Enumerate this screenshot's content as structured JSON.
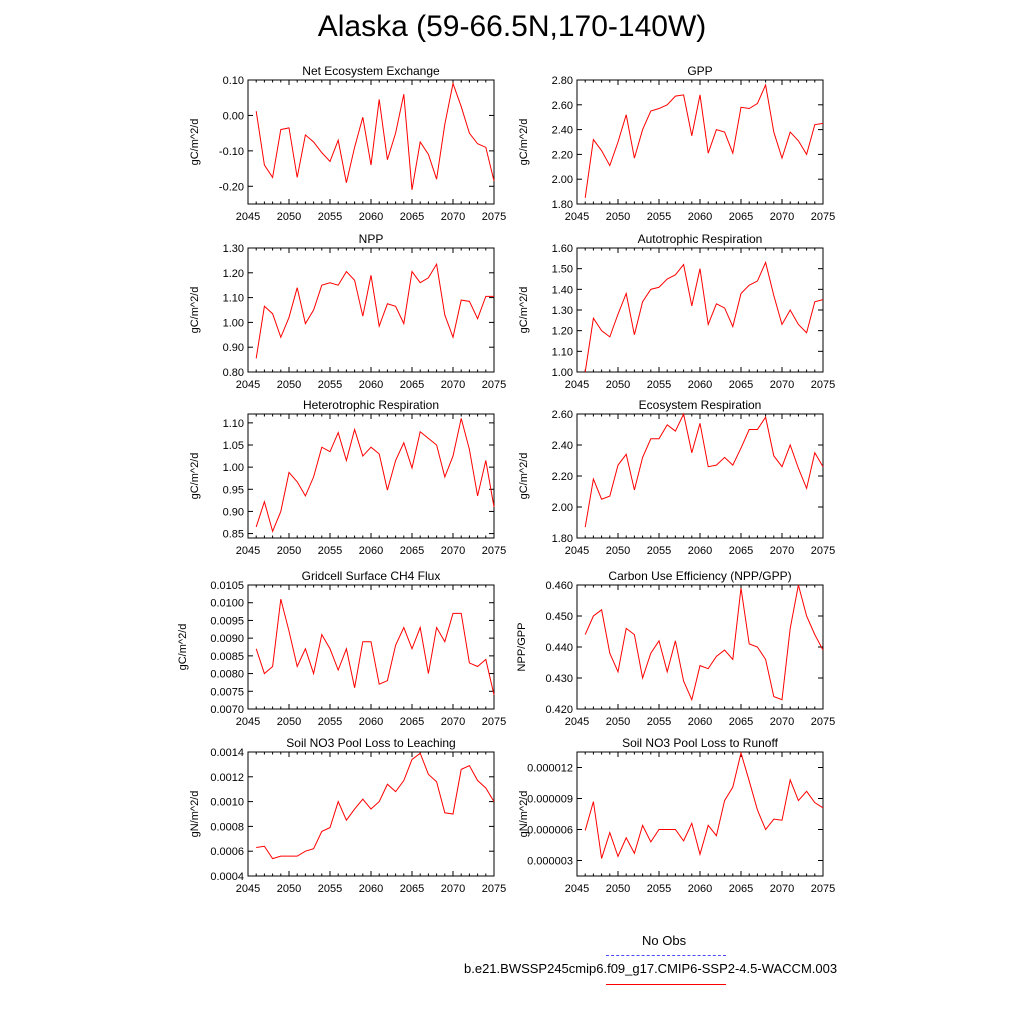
{
  "title": "Alaska (59-66.5N,170-140W)",
  "legend": {
    "obs_label": "No Obs",
    "model_label": "b.e21.BWSSP245cmip6.f09_g17.CMIP6-SSP2-4.5-WACCM.003",
    "obs_color": "#4a4aff",
    "model_color": "#ff0000"
  },
  "chart_data": [
    {
      "type": "line",
      "title": "Net Ecosystem Exchange",
      "ylabel": "gC/m^2/d",
      "xlim": [
        2045,
        2075
      ],
      "xticks": [
        2045,
        2050,
        2055,
        2060,
        2065,
        2070,
        2075
      ],
      "ylim": [
        -0.25,
        0.1
      ],
      "yticks": [
        -0.2,
        -0.1,
        0.0,
        0.1
      ],
      "ytick_labels": [
        "-0.20",
        "-0.10",
        "0.00",
        "0.10"
      ],
      "x": [
        2046,
        2047,
        2048,
        2049,
        2050,
        2051,
        2052,
        2053,
        2054,
        2055,
        2056,
        2057,
        2058,
        2059,
        2060,
        2061,
        2062,
        2063,
        2064,
        2065,
        2066,
        2067,
        2068,
        2069,
        2070,
        2071,
        2072,
        2073,
        2074,
        2075
      ],
      "series": [
        {
          "values": [
            0.012,
            -0.14,
            -0.175,
            -0.04,
            -0.035,
            -0.175,
            -0.055,
            -0.075,
            -0.105,
            -0.13,
            -0.07,
            -0.19,
            -0.09,
            -0.005,
            -0.14,
            0.045,
            -0.125,
            -0.05,
            0.06,
            -0.21,
            -0.075,
            -0.11,
            -0.18,
            -0.025,
            0.09,
            0.025,
            -0.05,
            -0.08,
            -0.09,
            -0.185
          ],
          "color": "#ff0000"
        }
      ]
    },
    {
      "type": "line",
      "title": "GPP",
      "ylabel": "gC/m^2/d",
      "xlim": [
        2045,
        2075
      ],
      "xticks": [
        2045,
        2050,
        2055,
        2060,
        2065,
        2070,
        2075
      ],
      "ylim": [
        1.8,
        2.8
      ],
      "yticks": [
        1.8,
        2.0,
        2.2,
        2.4,
        2.6,
        2.8
      ],
      "ytick_labels": [
        "1.80",
        "2.00",
        "2.20",
        "2.40",
        "2.60",
        "2.80"
      ],
      "x": [
        2046,
        2047,
        2048,
        2049,
        2050,
        2051,
        2052,
        2053,
        2054,
        2055,
        2056,
        2057,
        2058,
        2059,
        2060,
        2061,
        2062,
        2063,
        2064,
        2065,
        2066,
        2067,
        2068,
        2069,
        2070,
        2071,
        2072,
        2073,
        2074,
        2075
      ],
      "series": [
        {
          "values": [
            1.85,
            2.32,
            2.23,
            2.11,
            2.3,
            2.52,
            2.17,
            2.4,
            2.55,
            2.57,
            2.6,
            2.67,
            2.68,
            2.35,
            2.68,
            2.21,
            2.4,
            2.38,
            2.21,
            2.58,
            2.57,
            2.61,
            2.76,
            2.38,
            2.17,
            2.38,
            2.31,
            2.2,
            2.44,
            2.45
          ],
          "color": "#ff0000"
        }
      ]
    },
    {
      "type": "line",
      "title": "NPP",
      "ylabel": "gC/m^2/d",
      "xlim": [
        2045,
        2075
      ],
      "xticks": [
        2045,
        2050,
        2055,
        2060,
        2065,
        2070,
        2075
      ],
      "ylim": [
        0.8,
        1.3
      ],
      "yticks": [
        0.8,
        0.9,
        1.0,
        1.1,
        1.2,
        1.3
      ],
      "ytick_labels": [
        "0.80",
        "0.90",
        "1.00",
        "1.10",
        "1.20",
        "1.30"
      ],
      "x": [
        2046,
        2047,
        2048,
        2049,
        2050,
        2051,
        2052,
        2053,
        2054,
        2055,
        2056,
        2057,
        2058,
        2059,
        2060,
        2061,
        2062,
        2063,
        2064,
        2065,
        2066,
        2067,
        2068,
        2069,
        2070,
        2071,
        2072,
        2073,
        2074,
        2075
      ],
      "series": [
        {
          "values": [
            0.855,
            1.065,
            1.035,
            0.94,
            1.02,
            1.14,
            0.995,
            1.05,
            1.15,
            1.16,
            1.15,
            1.205,
            1.17,
            1.025,
            1.19,
            0.985,
            1.075,
            1.065,
            0.995,
            1.205,
            1.16,
            1.18,
            1.235,
            1.03,
            0.94,
            1.09,
            1.085,
            1.015,
            1.105,
            1.105
          ],
          "color": "#ff0000"
        }
      ]
    },
    {
      "type": "line",
      "title": "Autotrophic Respiration",
      "ylabel": "gC/m^2/d",
      "xlim": [
        2045,
        2075
      ],
      "xticks": [
        2045,
        2050,
        2055,
        2060,
        2065,
        2070,
        2075
      ],
      "ylim": [
        1.0,
        1.6
      ],
      "yticks": [
        1.0,
        1.1,
        1.2,
        1.3,
        1.4,
        1.5,
        1.6
      ],
      "ytick_labels": [
        "1.00",
        "1.10",
        "1.20",
        "1.30",
        "1.40",
        "1.50",
        "1.60"
      ],
      "x": [
        2046,
        2047,
        2048,
        2049,
        2050,
        2051,
        2052,
        2053,
        2054,
        2055,
        2056,
        2057,
        2058,
        2059,
        2060,
        2061,
        2062,
        2063,
        2064,
        2065,
        2066,
        2067,
        2068,
        2069,
        2070,
        2071,
        2072,
        2073,
        2074,
        2075
      ],
      "series": [
        {
          "values": [
            1.0,
            1.26,
            1.2,
            1.17,
            1.28,
            1.38,
            1.18,
            1.34,
            1.4,
            1.41,
            1.45,
            1.47,
            1.52,
            1.32,
            1.5,
            1.23,
            1.33,
            1.31,
            1.22,
            1.38,
            1.42,
            1.44,
            1.53,
            1.37,
            1.23,
            1.3,
            1.23,
            1.19,
            1.34,
            1.35
          ],
          "color": "#ff0000"
        }
      ]
    },
    {
      "type": "line",
      "title": "Heterotrophic Respiration",
      "ylabel": "gC/m^2/d",
      "xlim": [
        2045,
        2075
      ],
      "xticks": [
        2045,
        2050,
        2055,
        2060,
        2065,
        2070,
        2075
      ],
      "ylim": [
        0.84,
        1.12
      ],
      "yticks": [
        0.85,
        0.9,
        0.95,
        1.0,
        1.05,
        1.1
      ],
      "ytick_labels": [
        "0.85",
        "0.90",
        "0.95",
        "1.00",
        "1.05",
        "1.10"
      ],
      "x": [
        2046,
        2047,
        2048,
        2049,
        2050,
        2051,
        2052,
        2053,
        2054,
        2055,
        2056,
        2057,
        2058,
        2059,
        2060,
        2061,
        2062,
        2063,
        2064,
        2065,
        2066,
        2067,
        2068,
        2069,
        2070,
        2071,
        2072,
        2073,
        2074,
        2075
      ],
      "series": [
        {
          "values": [
            0.865,
            0.922,
            0.855,
            0.9,
            0.988,
            0.967,
            0.935,
            0.978,
            1.045,
            1.035,
            1.078,
            1.015,
            1.085,
            1.025,
            1.045,
            1.03,
            0.948,
            1.015,
            1.055,
            0.998,
            1.08,
            1.065,
            1.05,
            0.978,
            1.025,
            1.11,
            1.04,
            0.935,
            1.015,
            0.91
          ],
          "color": "#ff0000"
        }
      ]
    },
    {
      "type": "line",
      "title": "Ecosystem Respiration",
      "ylabel": "gC/m^2/d",
      "xlim": [
        2045,
        2075
      ],
      "xticks": [
        2045,
        2050,
        2055,
        2060,
        2065,
        2070,
        2075
      ],
      "ylim": [
        1.8,
        2.6
      ],
      "yticks": [
        1.8,
        2.0,
        2.2,
        2.4,
        2.6
      ],
      "ytick_labels": [
        "1.80",
        "2.00",
        "2.20",
        "2.40",
        "2.60"
      ],
      "x": [
        2046,
        2047,
        2048,
        2049,
        2050,
        2051,
        2052,
        2053,
        2054,
        2055,
        2056,
        2057,
        2058,
        2059,
        2060,
        2061,
        2062,
        2063,
        2064,
        2065,
        2066,
        2067,
        2068,
        2069,
        2070,
        2071,
        2072,
        2073,
        2074,
        2075
      ],
      "series": [
        {
          "values": [
            1.87,
            2.18,
            2.05,
            2.07,
            2.27,
            2.34,
            2.11,
            2.32,
            2.44,
            2.44,
            2.53,
            2.49,
            2.6,
            2.35,
            2.54,
            2.26,
            2.27,
            2.32,
            2.27,
            2.38,
            2.5,
            2.5,
            2.58,
            2.33,
            2.26,
            2.4,
            2.25,
            2.12,
            2.35,
            2.26
          ],
          "color": "#ff0000"
        }
      ]
    },
    {
      "type": "line",
      "title": "Gridcell Surface CH4 Flux",
      "ylabel": "gC/m^2/d",
      "xlim": [
        2045,
        2075
      ],
      "xticks": [
        2045,
        2050,
        2055,
        2060,
        2065,
        2070,
        2075
      ],
      "ylim": [
        0.007,
        0.0105
      ],
      "yticks": [
        0.007,
        0.0075,
        0.008,
        0.0085,
        0.009,
        0.0095,
        0.01,
        0.0105
      ],
      "ytick_labels": [
        "0.0070",
        "0.0075",
        "0.0080",
        "0.0085",
        "0.0090",
        "0.0095",
        "0.0100",
        "0.0105"
      ],
      "x": [
        2046,
        2047,
        2048,
        2049,
        2050,
        2051,
        2052,
        2053,
        2054,
        2055,
        2056,
        2057,
        2058,
        2059,
        2060,
        2061,
        2062,
        2063,
        2064,
        2065,
        2066,
        2067,
        2068,
        2069,
        2070,
        2071,
        2072,
        2073,
        2074,
        2075
      ],
      "series": [
        {
          "values": [
            0.0087,
            0.008,
            0.0082,
            0.0101,
            0.0092,
            0.0082,
            0.0087,
            0.008,
            0.0091,
            0.0087,
            0.0081,
            0.0087,
            0.0076,
            0.0089,
            0.0089,
            0.0077,
            0.0078,
            0.0088,
            0.0093,
            0.0087,
            0.0093,
            0.008,
            0.0093,
            0.0089,
            0.0097,
            0.0097,
            0.0083,
            0.0082,
            0.0084,
            0.0074
          ],
          "color": "#ff0000"
        }
      ]
    },
    {
      "type": "line",
      "title": "Carbon Use Efficiency (NPP/GPP)",
      "ylabel": "NPP/GPP",
      "xlim": [
        2045,
        2075
      ],
      "xticks": [
        2045,
        2050,
        2055,
        2060,
        2065,
        2070,
        2075
      ],
      "ylim": [
        0.42,
        0.46
      ],
      "yticks": [
        0.42,
        0.43,
        0.44,
        0.45,
        0.46
      ],
      "ytick_labels": [
        "0.420",
        "0.430",
        "0.440",
        "0.450",
        "0.460"
      ],
      "x": [
        2046,
        2047,
        2048,
        2049,
        2050,
        2051,
        2052,
        2053,
        2054,
        2055,
        2056,
        2057,
        2058,
        2059,
        2060,
        2061,
        2062,
        2063,
        2064,
        2065,
        2066,
        2067,
        2068,
        2069,
        2070,
        2071,
        2072,
        2073,
        2074,
        2075
      ],
      "series": [
        {
          "values": [
            0.444,
            0.45,
            0.452,
            0.438,
            0.432,
            0.446,
            0.444,
            0.43,
            0.438,
            0.442,
            0.432,
            0.442,
            0.429,
            0.423,
            0.434,
            0.433,
            0.437,
            0.439,
            0.436,
            0.459,
            0.441,
            0.44,
            0.436,
            0.424,
            0.423,
            0.446,
            0.46,
            0.45,
            0.444,
            0.439
          ],
          "color": "#ff0000"
        }
      ]
    },
    {
      "type": "line",
      "title": "Soil NO3 Pool Loss to Leaching",
      "ylabel": "gN/m^2/d",
      "xlim": [
        2045,
        2075
      ],
      "xticks": [
        2045,
        2050,
        2055,
        2060,
        2065,
        2070,
        2075
      ],
      "ylim": [
        0.0004,
        0.0014
      ],
      "yticks": [
        0.0004,
        0.0006,
        0.0008,
        0.001,
        0.0012,
        0.0014
      ],
      "ytick_labels": [
        "0.0004",
        "0.0006",
        "0.0008",
        "0.0010",
        "0.0012",
        "0.0014"
      ],
      "x": [
        2046,
        2047,
        2048,
        2049,
        2050,
        2051,
        2052,
        2053,
        2054,
        2055,
        2056,
        2057,
        2058,
        2059,
        2060,
        2061,
        2062,
        2063,
        2064,
        2065,
        2066,
        2067,
        2068,
        2069,
        2070,
        2071,
        2072,
        2073,
        2074,
        2075
      ],
      "series": [
        {
          "values": [
            0.00063,
            0.00064,
            0.00054,
            0.00056,
            0.00056,
            0.00056,
            0.0006,
            0.00062,
            0.00076,
            0.00079,
            0.001,
            0.00085,
            0.00094,
            0.00102,
            0.00094,
            0.001,
            0.00114,
            0.00108,
            0.00117,
            0.00134,
            0.00139,
            0.00122,
            0.00116,
            0.00091,
            0.0009,
            0.00126,
            0.00129,
            0.00117,
            0.00111,
            0.001
          ],
          "color": "#ff0000"
        }
      ]
    },
    {
      "type": "line",
      "title": "Soil NO3 Pool Loss to Runoff",
      "ylabel": "gN/m^2/d",
      "xlim": [
        2045,
        2075
      ],
      "xticks": [
        2045,
        2050,
        2055,
        2060,
        2065,
        2070,
        2075
      ],
      "ylim": [
        1.5e-06,
        1.35e-05
      ],
      "yticks": [
        3e-06,
        6e-06,
        9e-06,
        1.2e-05
      ],
      "ytick_labels": [
        "0.000003",
        "0.000006",
        "0.000009",
        "0.000012"
      ],
      "x": [
        2046,
        2047,
        2048,
        2049,
        2050,
        2051,
        2052,
        2053,
        2054,
        2055,
        2056,
        2057,
        2058,
        2059,
        2060,
        2061,
        2062,
        2063,
        2064,
        2065,
        2066,
        2067,
        2068,
        2069,
        2070,
        2071,
        2072,
        2073,
        2074,
        2075
      ],
      "series": [
        {
          "values": [
            5.9e-06,
            8.7e-06,
            3.2e-06,
            5.7e-06,
            3.4e-06,
            5.2e-06,
            3.7e-06,
            6.4e-06,
            4.8e-06,
            6e-06,
            6e-06,
            6e-06,
            4.9e-06,
            6.6e-06,
            3.6e-06,
            6.4e-06,
            5.4e-06,
            8.8e-06,
            1.01e-05,
            1.34e-05,
            1.07e-05,
            7.9e-06,
            6e-06,
            7e-06,
            6.9e-06,
            1.08e-05,
            8.8e-06,
            9.7e-06,
            8.6e-06,
            8.1e-06
          ],
          "color": "#ff0000"
        }
      ]
    }
  ]
}
